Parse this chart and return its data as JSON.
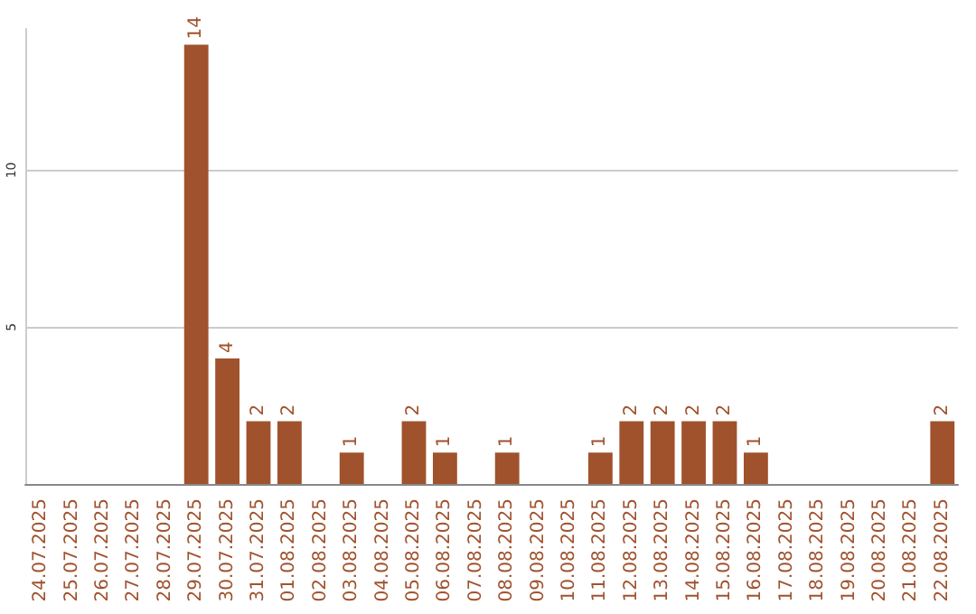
{
  "chart_data": {
    "type": "bar",
    "categories": [
      "24.07.2025",
      "25.07.2025",
      "26.07.2025",
      "27.07.2025",
      "28.07.2025",
      "29.07.2025",
      "30.07.2025",
      "31.07.2025",
      "01.08.2025",
      "02.08.2025",
      "03.08.2025",
      "04.08.2025",
      "05.08.2025",
      "06.08.2025",
      "07.08.2025",
      "08.08.2025",
      "09.08.2025",
      "10.08.2025",
      "11.08.2025",
      "12.08.2025",
      "13.08.2025",
      "14.08.2025",
      "15.08.2025",
      "16.08.2025",
      "17.08.2025",
      "18.08.2025",
      "19.08.2025",
      "20.08.2025",
      "21.08.2025",
      "22.08.2025"
    ],
    "values": [
      0,
      0,
      0,
      0,
      0,
      14,
      4,
      2,
      2,
      0,
      1,
      0,
      2,
      1,
      0,
      1,
      0,
      0,
      1,
      2,
      2,
      2,
      2,
      1,
      0,
      0,
      0,
      0,
      0,
      2
    ],
    "value_labels": [
      null,
      null,
      null,
      null,
      null,
      "14",
      "4",
      "2",
      "2",
      null,
      "1",
      null,
      "2",
      "1",
      null,
      "1",
      null,
      null,
      "1",
      "2",
      "2",
      "2",
      "2",
      "1",
      null,
      null,
      null,
      null,
      null,
      "2"
    ],
    "color": "#a0522d",
    "ylim": [
      0,
      14.5
    ],
    "yticks": [
      5,
      10
    ],
    "grid": "y"
  }
}
